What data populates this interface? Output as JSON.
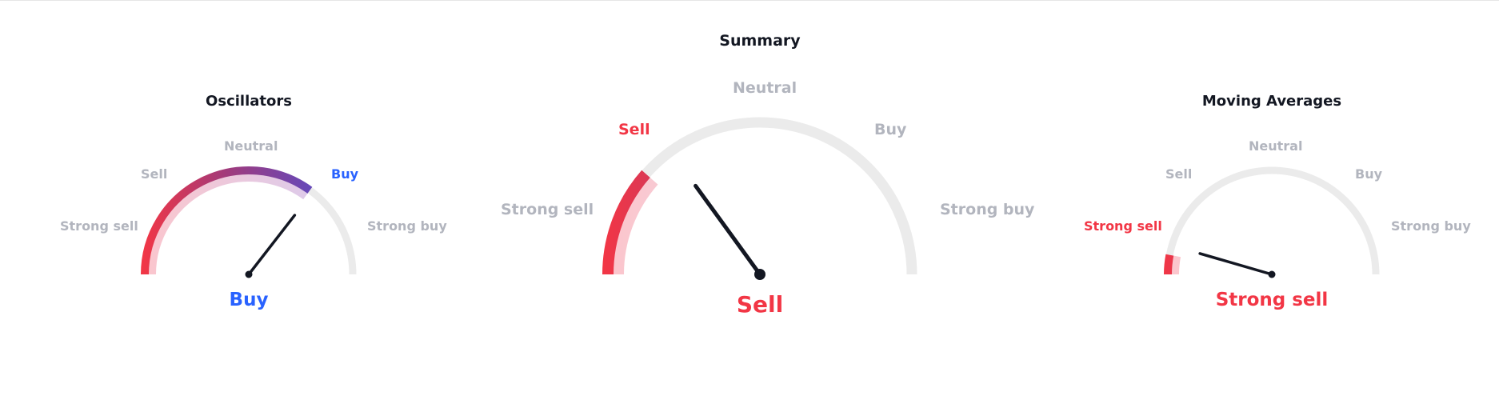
{
  "colors": {
    "sell": "#f23645",
    "buy": "#2962ff",
    "neutral_label": "#b2b5be",
    "track": "#ebebeb",
    "needle": "#131722"
  },
  "summary": {
    "title": "Summary",
    "labels": {
      "strong_sell": "Strong sell",
      "sell": "Sell",
      "neutral": "Neutral",
      "buy": "Buy",
      "strong_buy": "Strong buy"
    },
    "active_label": "sell",
    "result": "Sell",
    "fill_fraction": 0.23,
    "needle_fraction": 0.3
  },
  "oscillators": {
    "title": "Oscillators",
    "labels": {
      "strong_sell": "Strong sell",
      "sell": "Sell",
      "neutral": "Neutral",
      "buy": "Buy",
      "strong_buy": "Strong buy"
    },
    "active_label": "buy",
    "result": "Buy",
    "fill_fraction": 0.7,
    "needle_fraction": 0.71
  },
  "moving_averages": {
    "title": "Moving Averages",
    "labels": {
      "strong_sell": "Strong sell",
      "sell": "Sell",
      "neutral": "Neutral",
      "buy": "Buy",
      "strong_buy": "Strong buy"
    },
    "active_label": "strong_sell",
    "result": "Strong sell",
    "fill_fraction": 0.06,
    "needle_fraction": 0.09
  }
}
